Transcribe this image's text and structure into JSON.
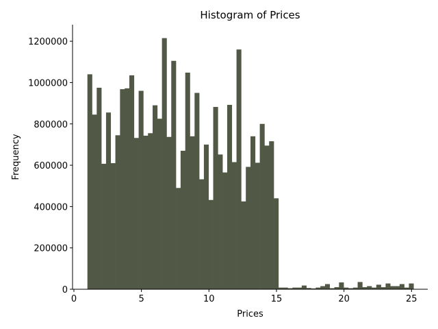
{
  "chart_data": {
    "type": "bar",
    "title": "Histogram of Prices",
    "xlabel": "Prices",
    "ylabel": "Frequency",
    "xlim": [
      -0.1,
      26.2
    ],
    "ylim": [
      0,
      1280000
    ],
    "xticks": [
      0,
      5,
      10,
      15,
      20,
      25
    ],
    "yticks": [
      0,
      200000,
      400000,
      600000,
      800000,
      1000000,
      1200000
    ],
    "grid": false,
    "legend": "none",
    "bar_color": "#525846",
    "bin_width": 0.345,
    "bin_start": 1.0,
    "values": [
      1040000,
      845000,
      975000,
      607000,
      855000,
      610000,
      745000,
      968000,
      972000,
      1035000,
      732000,
      960000,
      743000,
      755000,
      890000,
      825000,
      1215000,
      737000,
      1105000,
      490000,
      670000,
      1048000,
      740000,
      950000,
      532000,
      700000,
      432000,
      882000,
      652000,
      565000,
      892000,
      615000,
      1160000,
      425000,
      592000,
      740000,
      612000,
      800000,
      695000,
      716000,
      440000,
      8000,
      8000,
      5000,
      8000,
      8000,
      18000,
      6000,
      4000,
      8000,
      15000,
      25000,
      5000,
      10000,
      33000,
      8000,
      5000,
      8000,
      35000,
      10000,
      15000,
      8000,
      22000,
      10000,
      28000,
      15000,
      15000,
      25000,
      8000,
      28000
    ]
  }
}
